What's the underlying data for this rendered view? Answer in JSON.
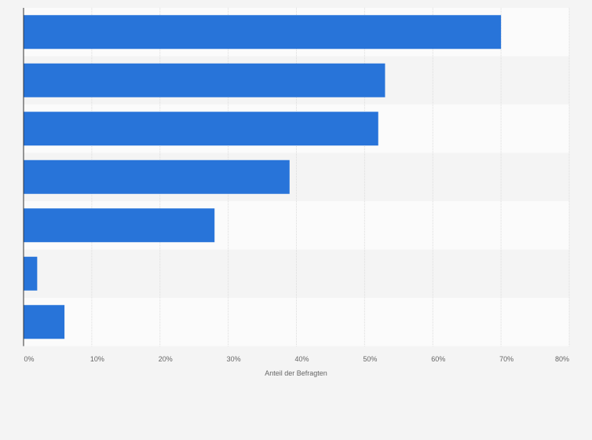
{
  "chart_data": {
    "type": "bar",
    "orientation": "horizontal",
    "categories": [
      "",
      "",
      "",
      "",
      "",
      "",
      ""
    ],
    "values": [
      70,
      53,
      52,
      39,
      28,
      2,
      6
    ],
    "unit": "%",
    "xlabel": "Anteil der Befragten",
    "xlim": [
      0,
      80
    ],
    "ticks": [
      0,
      10,
      20,
      30,
      40,
      50,
      60,
      70,
      80
    ],
    "tick_labels": [
      "0%",
      "10%",
      "20%",
      "30%",
      "40%",
      "50%",
      "60%",
      "70%",
      "80%"
    ],
    "grid": true,
    "legend": "none",
    "colors": {
      "bar": "#2874d9",
      "band_light": "#fbfbfb",
      "band_dark": "#f4f4f4",
      "grid": "#dcdcdc",
      "axis": "#333333",
      "text": "#666666"
    }
  }
}
